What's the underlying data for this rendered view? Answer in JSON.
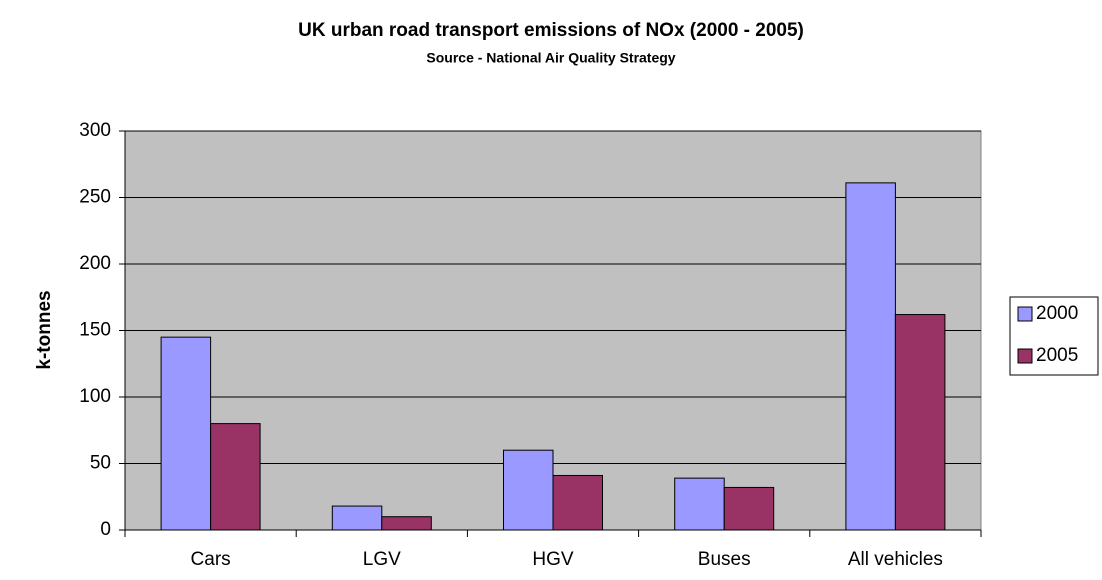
{
  "chart_data": {
    "type": "bar",
    "title": "UK urban road transport emissions of NOx (2000 - 2005)",
    "subtitle": "Source - National Air Quality Strategy",
    "y_label": "k-tonnes",
    "categories": [
      "Cars",
      "LGV",
      "HGV",
      "Buses",
      "All vehicles"
    ],
    "series": [
      {
        "name": "2000",
        "color": "#9999ff",
        "values": [
          145,
          18,
          60,
          39,
          261
        ]
      },
      {
        "name": "2005",
        "color": "#993366",
        "values": [
          80,
          10,
          41,
          32,
          162
        ]
      }
    ],
    "ylim": [
      0,
      300
    ],
    "yticks": [
      0,
      50,
      100,
      150,
      200,
      250,
      300
    ],
    "grid": true,
    "legend": "right"
  }
}
